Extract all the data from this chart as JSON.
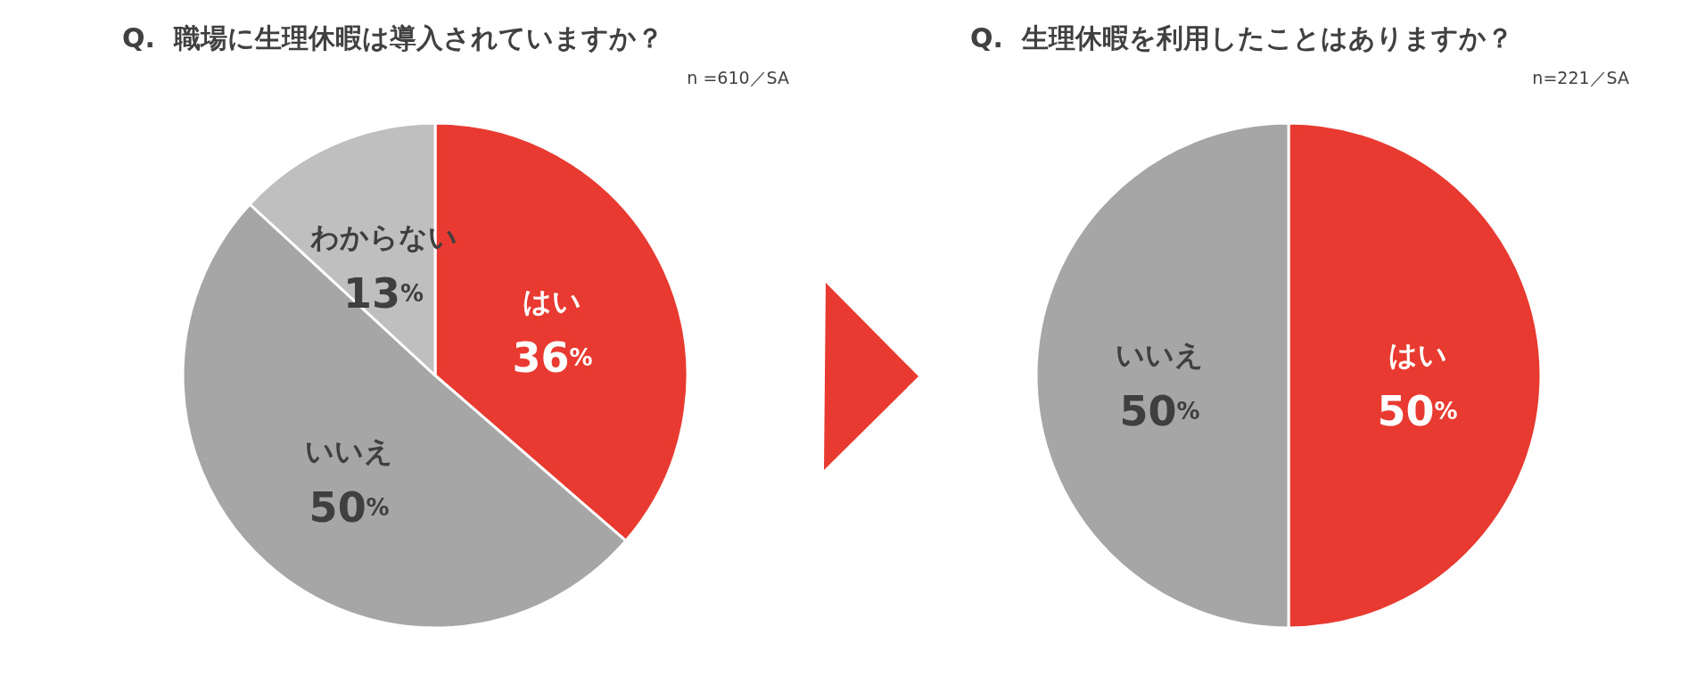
{
  "chart_data": [
    {
      "type": "pie",
      "title": "Q.  職場に生理休暇は導入されていますか？",
      "subtitle": "n =610／SA",
      "categories": [
        "はい",
        "いいえ",
        "わからない"
      ],
      "values": [
        36,
        50,
        13
      ],
      "colors": [
        "#e83a30",
        "#a6a6a6",
        "#bfbfbf"
      ],
      "value_labels": [
        "36%",
        "50%",
        "13%"
      ]
    },
    {
      "type": "pie",
      "title": "Q.  生理休暇を利用したことはありますか？",
      "subtitle": "n=221／SA",
      "categories": [
        "はい",
        "いいえ"
      ],
      "values": [
        50,
        50
      ],
      "colors": [
        "#e83a30",
        "#a6a6a6"
      ],
      "value_labels": [
        "50%",
        "50%"
      ]
    }
  ]
}
